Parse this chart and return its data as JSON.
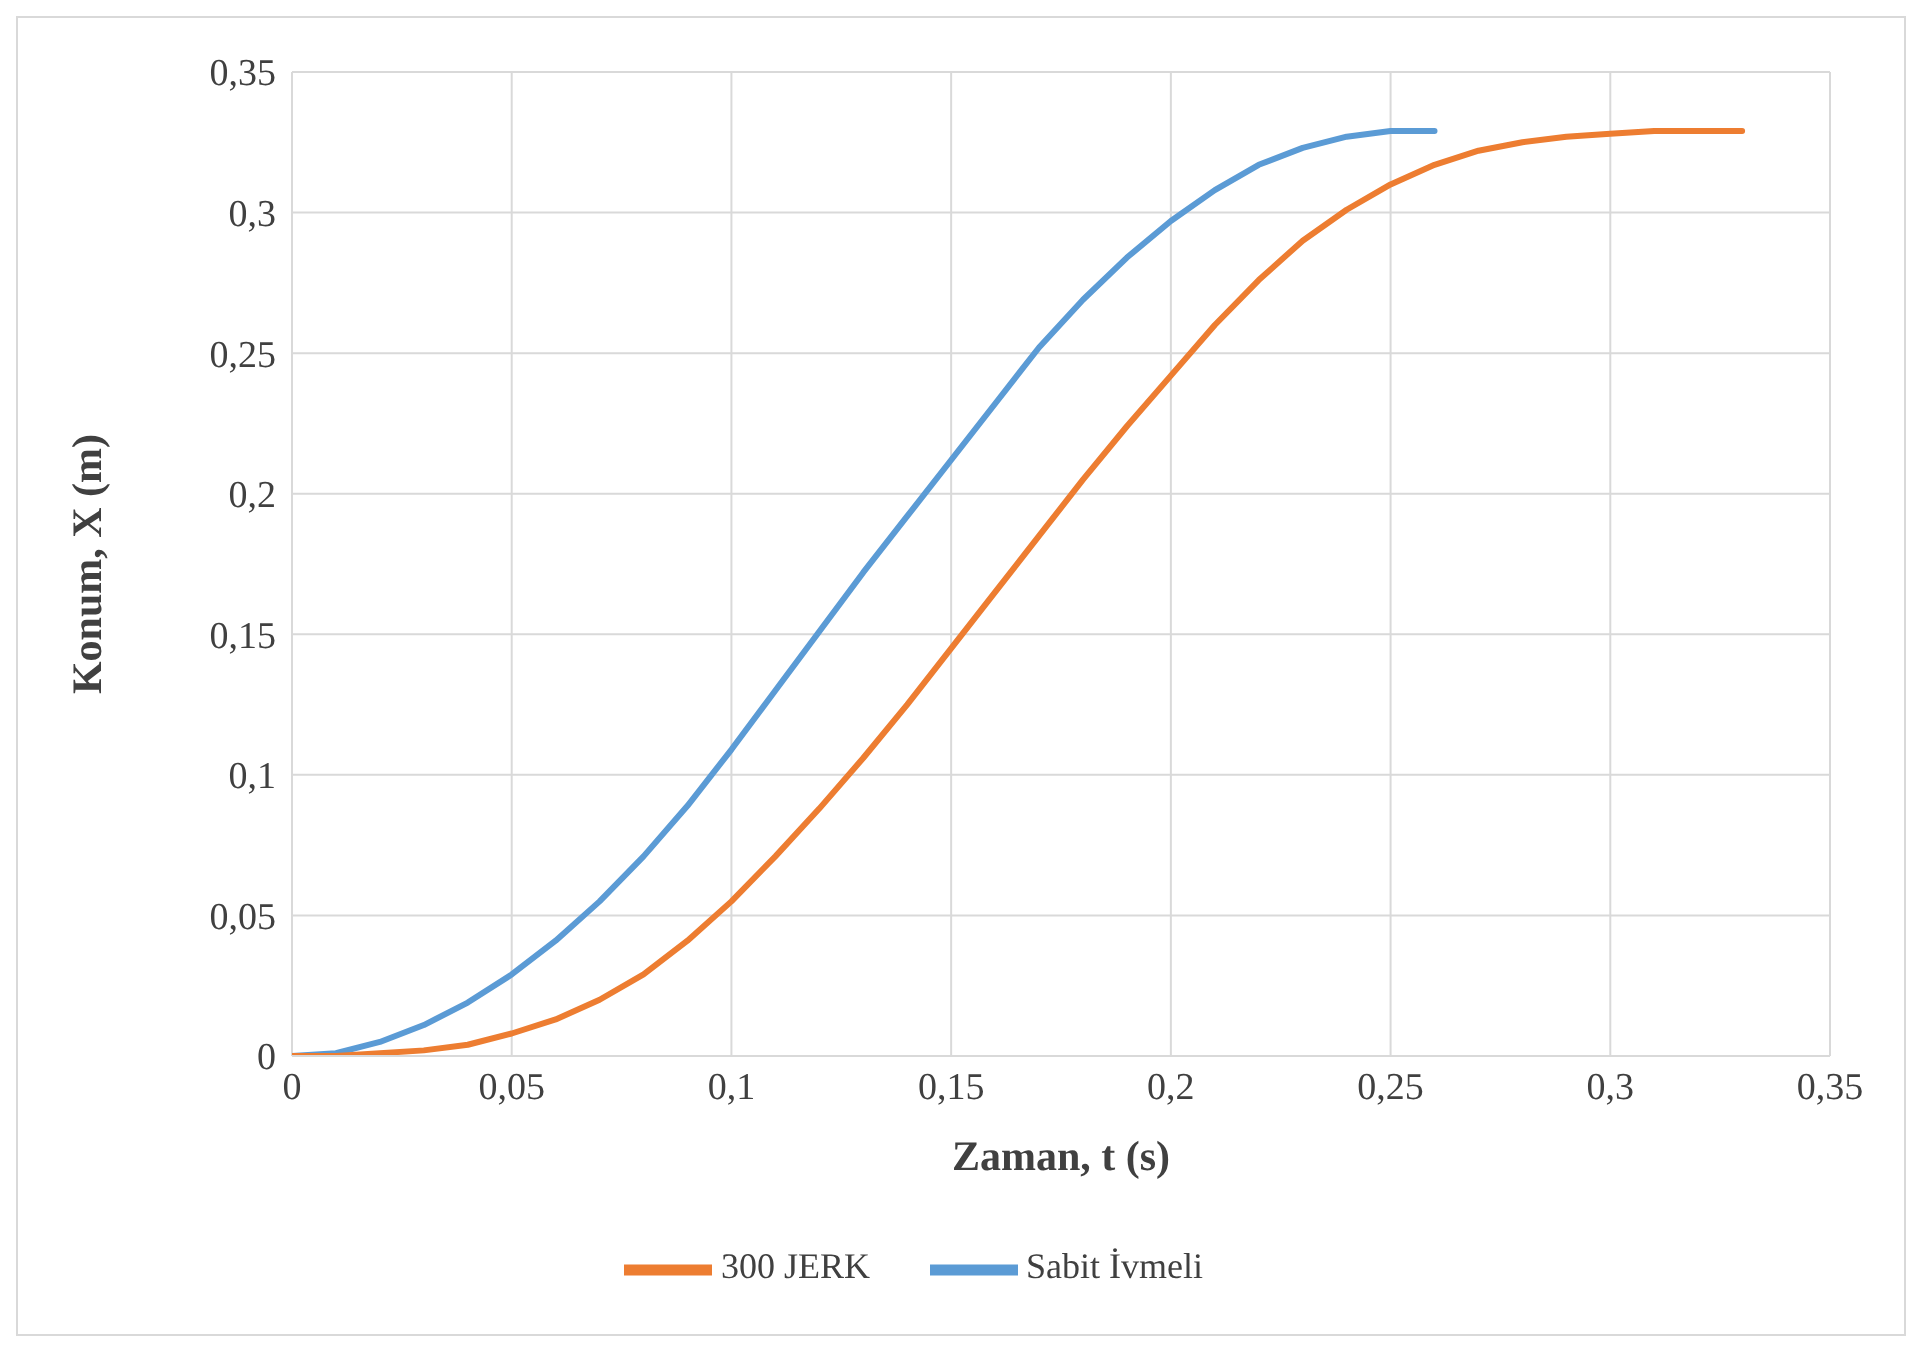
{
  "chart_data": {
    "type": "line",
    "xlabel": "Zaman, t (s)",
    "ylabel": "Konum, X (m)",
    "xlim": [
      0,
      0.35
    ],
    "ylim": [
      0,
      0.35
    ],
    "xticks": [
      0,
      {
        "value": 0.05,
        "label": "0,05"
      },
      {
        "value": 0.1,
        "label": "0,1"
      },
      {
        "value": 0.15,
        "label": "0,15"
      },
      {
        "value": 0.2,
        "label": "0,2"
      },
      {
        "value": 0.25,
        "label": "0,25"
      },
      {
        "value": 0.3,
        "label": "0,3"
      },
      {
        "value": 0.35,
        "label": "0,35"
      }
    ],
    "yticks": [
      0,
      {
        "value": 0.05,
        "label": "0,05"
      },
      {
        "value": 0.1,
        "label": "0,1"
      },
      {
        "value": 0.15,
        "label": "0,15"
      },
      {
        "value": 0.2,
        "label": "0,2"
      },
      {
        "value": 0.25,
        "label": "0,25"
      },
      {
        "value": 0.3,
        "label": "0,3"
      },
      {
        "value": 0.35,
        "label": "0,35"
      }
    ],
    "grid": true,
    "legend": "bottom",
    "marker": "none",
    "line_style": "solid",
    "series": [
      {
        "name": "Sabit İvmeli",
        "color": "#5b9bd5",
        "x": [
          0,
          0.01,
          0.02,
          0.03,
          0.04,
          0.05,
          0.06,
          0.07,
          0.08,
          0.09,
          0.1,
          0.11,
          0.12,
          0.13,
          0.14,
          0.15,
          0.16,
          0.17,
          0.18,
          0.19,
          0.2,
          0.21,
          0.22,
          0.23,
          0.24,
          0.25,
          0.26
        ],
        "values": [
          0,
          0.001,
          0.005,
          0.011,
          0.019,
          0.029,
          0.041,
          0.055,
          0.071,
          0.089,
          0.109,
          0.13,
          0.151,
          0.172,
          0.192,
          0.212,
          0.232,
          0.252,
          0.269,
          0.284,
          0.297,
          0.308,
          0.317,
          0.323,
          0.327,
          0.329,
          0.329
        ]
      },
      {
        "name": "300 JERK",
        "color": "#ed7d31",
        "x": [
          0,
          0.01,
          0.02,
          0.03,
          0.04,
          0.05,
          0.06,
          0.07,
          0.08,
          0.09,
          0.1,
          0.11,
          0.12,
          0.13,
          0.14,
          0.15,
          0.16,
          0.17,
          0.18,
          0.19,
          0.2,
          0.21,
          0.22,
          0.23,
          0.24,
          0.25,
          0.26,
          0.27,
          0.28,
          0.29,
          0.3,
          0.31,
          0.32,
          0.33
        ],
        "values": [
          0,
          0,
          0.001,
          0.002,
          0.004,
          0.008,
          0.013,
          0.02,
          0.029,
          0.041,
          0.055,
          0.071,
          0.088,
          0.106,
          0.125,
          0.145,
          0.165,
          0.185,
          0.205,
          0.224,
          0.242,
          0.26,
          0.276,
          0.29,
          0.301,
          0.31,
          0.317,
          0.322,
          0.325,
          0.327,
          0.328,
          0.329,
          0.329,
          0.329
        ]
      }
    ]
  }
}
